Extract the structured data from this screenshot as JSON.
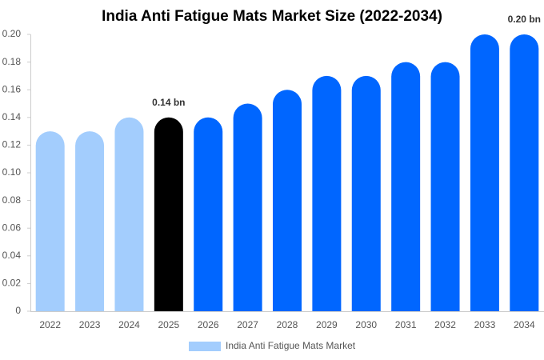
{
  "chart_data": {
    "type": "bar",
    "title": "India Anti Fatigue Mats Market Size (2022-2034)",
    "categories": [
      "2022",
      "2023",
      "2024",
      "2025",
      "2026",
      "2027",
      "2028",
      "2029",
      "2030",
      "2031",
      "2032",
      "2033",
      "2034"
    ],
    "series": [
      {
        "name": "India Anti Fatigue Mats Market",
        "color": "#a3cdfd",
        "values": [
          0.13,
          0.13,
          0.14,
          0.14,
          0.14,
          0.15,
          0.16,
          0.17,
          0.17,
          0.18,
          0.18,
          0.2,
          0.2
        ],
        "colors": [
          "#a3cdfd",
          "#a3cdfd",
          "#a3cdfd",
          "#000000",
          "#0066ff",
          "#0066ff",
          "#0066ff",
          "#0066ff",
          "#0066ff",
          "#0066ff",
          "#0066ff",
          "#0066ff",
          "#0066ff"
        ],
        "value_labels": [
          null,
          null,
          null,
          "0.14 bn",
          null,
          null,
          null,
          null,
          null,
          null,
          null,
          null,
          "0.20 bn"
        ]
      }
    ],
    "ylim": [
      0,
      0.2
    ],
    "yticks": [
      0,
      {
        "value": 0.02,
        "label": "0.02"
      },
      {
        "value": 0.04,
        "label": "0.04"
      },
      {
        "value": 0.06,
        "label": "0.06"
      },
      {
        "value": 0.08,
        "label": "0.08"
      },
      {
        "value": 0.1,
        "label": "0.10"
      },
      {
        "value": 0.12,
        "label": "0.12"
      },
      {
        "value": 0.14,
        "label": "0.14"
      },
      {
        "value": 0.16,
        "label": "0.16"
      },
      {
        "value": 0.18,
        "label": "0.18"
      },
      {
        "value": 0.2,
        "label": "0.20"
      }
    ],
    "grid": false
  }
}
